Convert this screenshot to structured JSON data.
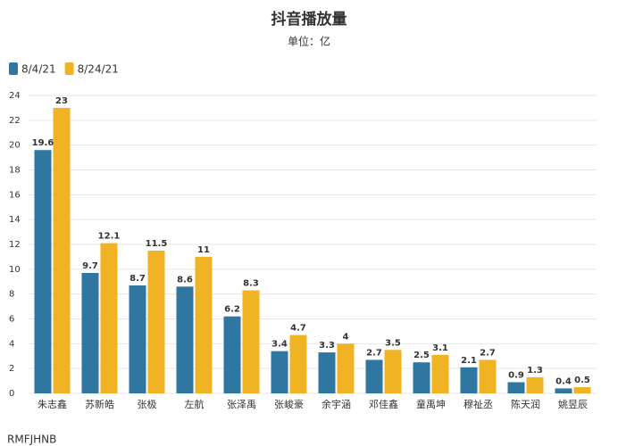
{
  "chart_data": {
    "type": "bar",
    "title": "抖音播放量",
    "subtitle": "单位：亿",
    "categories": [
      "朱志鑫",
      "苏新皓",
      "张极",
      "左航",
      "张泽禹",
      "张峻豪",
      "余宇涵",
      "邓佳鑫",
      "童禹坤",
      "穆祉丞",
      "陈天润",
      "姚昱辰"
    ],
    "series": [
      {
        "name": "8/4/21",
        "color": "#2f76a1",
        "values": [
          19.6,
          9.7,
          8.7,
          8.6,
          6.2,
          3.4,
          3.3,
          2.7,
          2.5,
          2.1,
          0.9,
          0.4
        ]
      },
      {
        "name": "8/24/21",
        "color": "#f0b324",
        "values": [
          23,
          12.1,
          11.5,
          11,
          8.3,
          4.7,
          4,
          3.5,
          3.1,
          2.7,
          1.3,
          0.5
        ]
      }
    ],
    "ylim": [
      0,
      24
    ],
    "yticks": [
      0,
      2,
      4,
      6,
      8,
      10,
      12,
      14,
      16,
      18,
      20,
      22,
      24
    ],
    "grid": true,
    "legend": "top-left",
    "footer": "RMFJHNB"
  }
}
